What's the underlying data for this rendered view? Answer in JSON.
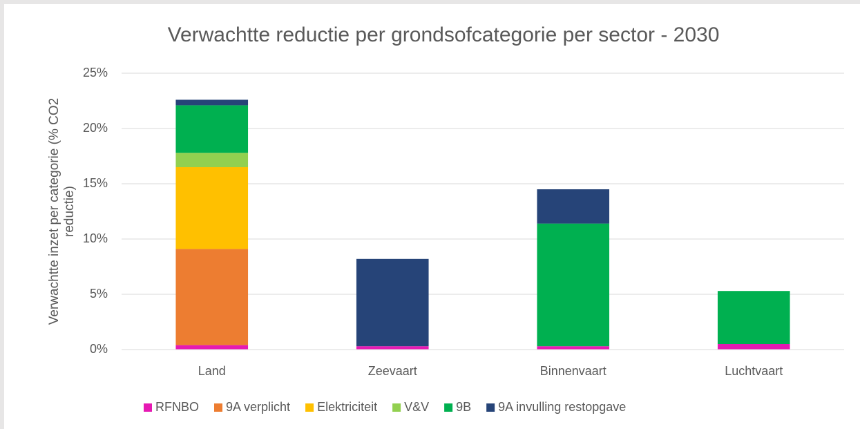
{
  "chart_data": {
    "type": "stacked_bar",
    "title": "Verwachtte reductie per grondsofcategorie per sector - 2030",
    "y_label": "Verwachtte inzet per categorie (% CO2 reductie)",
    "categories": [
      "Land",
      "Zeevaart",
      "Binnenvaart",
      "Luchtvaart"
    ],
    "series": [
      {
        "name": "RFNBO",
        "color": "#e619b3",
        "values": [
          0.4,
          0.3,
          0.3,
          0.5
        ]
      },
      {
        "name": "9A verplicht",
        "color": "#ed7d31",
        "values": [
          8.7,
          0,
          0,
          0
        ]
      },
      {
        "name": "Elektriciteit",
        "color": "#ffc000",
        "values": [
          7.4,
          0,
          0,
          0
        ]
      },
      {
        "name": "V&V",
        "color": "#92d050",
        "values": [
          1.3,
          0,
          0,
          0
        ]
      },
      {
        "name": "9B",
        "color": "#00b050",
        "values": [
          4.3,
          0,
          11.1,
          4.8
        ]
      },
      {
        "name": "9A invulling restopgave",
        "color": "#264478",
        "values": [
          0.5,
          7.9,
          3.1,
          0
        ]
      }
    ],
    "ylim": [
      0,
      25
    ],
    "yticks": [
      {
        "value": 0,
        "label": "0%"
      },
      {
        "value": 5,
        "label": "5%"
      },
      {
        "value": 10,
        "label": "10%"
      },
      {
        "value": 15,
        "label": "15%"
      },
      {
        "value": 20,
        "label": "20%"
      },
      {
        "value": 25,
        "label": "25%"
      }
    ],
    "grid": true,
    "legend": "bottom"
  }
}
